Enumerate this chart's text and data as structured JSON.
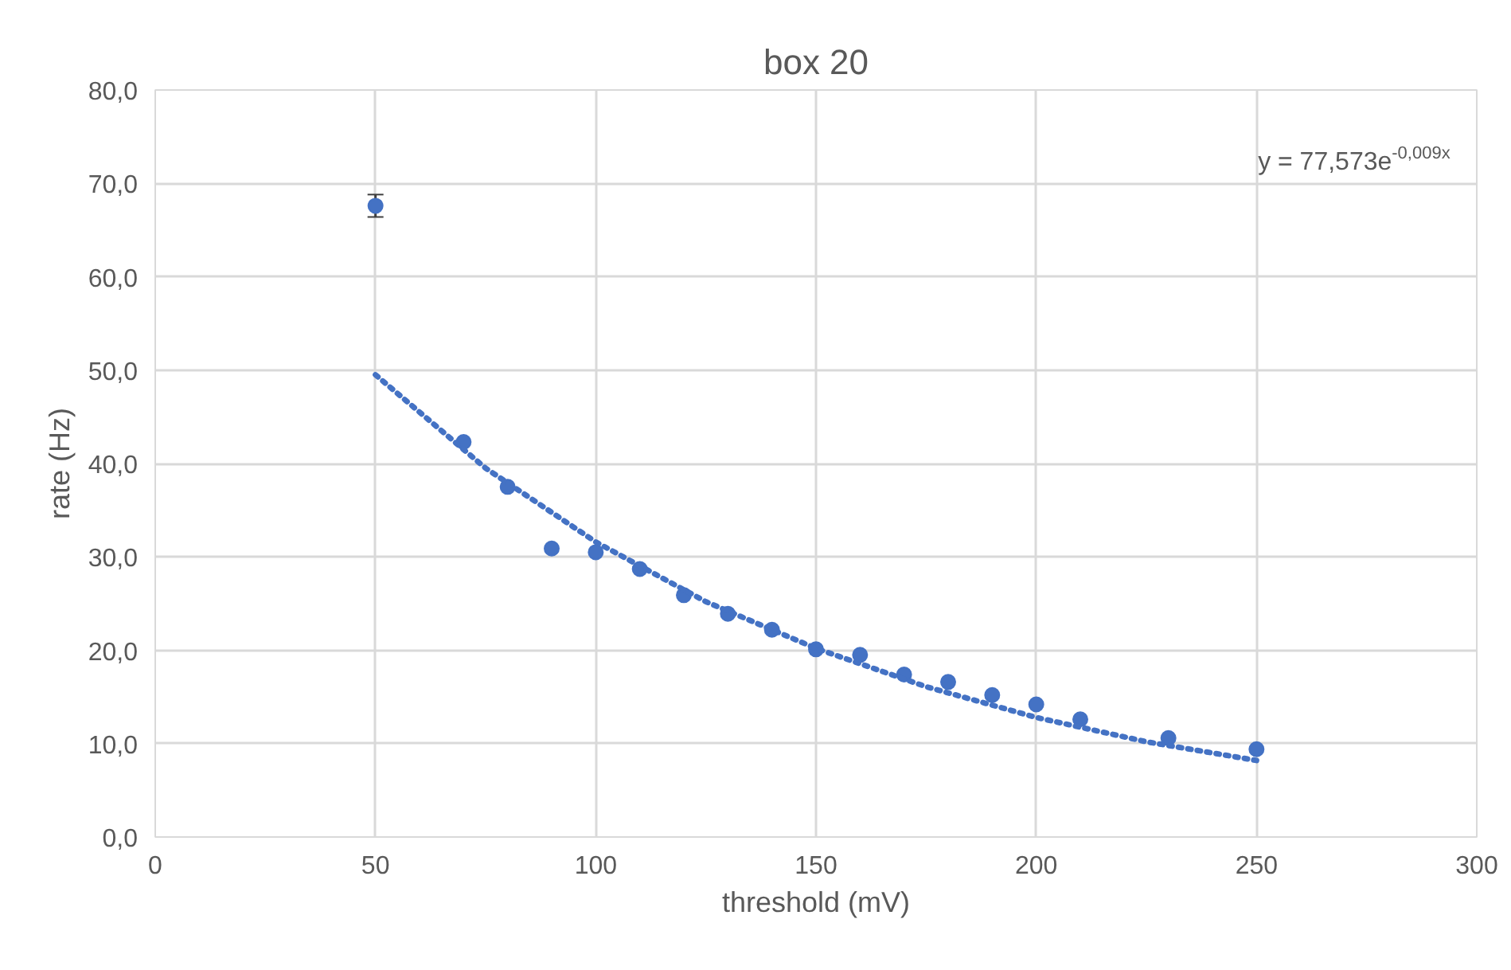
{
  "chart_data": {
    "type": "scatter",
    "title": "box 20",
    "xlabel": "threshold (mV)",
    "ylabel": "rate (Hz)",
    "x": [
      50,
      70,
      80,
      90,
      100,
      110,
      120,
      130,
      140,
      150,
      160,
      170,
      180,
      190,
      200,
      210,
      230,
      250
    ],
    "series": [
      {
        "color": "#4472c4",
        "values": [
          67.6,
          42.3,
          37.5,
          30.9,
          30.5,
          28.7,
          25.9,
          23.9,
          22.2,
          20.1,
          19.5,
          17.4,
          16.6,
          15.2,
          14.2,
          12.6,
          10.6,
          9.4
        ],
        "errors": [
          1.2,
          null,
          null,
          null,
          null,
          null,
          null,
          null,
          null,
          null,
          null,
          null,
          null,
          null,
          null,
          null,
          null,
          null
        ],
        "marker": "circle"
      },
      {
        "type": "line",
        "color": "#4472c4",
        "line_style": "dotted",
        "x": [
          50,
          75,
          100,
          125,
          150,
          175,
          200,
          225,
          250
        ],
        "values": [
          49.5,
          39.5,
          31.6,
          25.2,
          20.2,
          16.1,
          12.8,
          10.2,
          8.2
        ]
      }
    ],
    "xlim": [
      0,
      300
    ],
    "xticks": [
      0,
      50,
      100,
      150,
      200,
      250,
      300
    ],
    "ylim": [
      0,
      80
    ],
    "yticks": [
      {
        "value": 0,
        "label": "0,0"
      },
      {
        "value": 10,
        "label": "10,0"
      },
      {
        "value": 20,
        "label": "20,0"
      },
      {
        "value": 30,
        "label": "30,0"
      },
      {
        "value": 40,
        "label": "40,0"
      },
      {
        "value": 50,
        "label": "50,0"
      },
      {
        "value": 60,
        "label": "60,0"
      },
      {
        "value": 70,
        "label": "70,0"
      },
      {
        "value": 80,
        "label": "80,0"
      }
    ],
    "grid": true,
    "annotations": [
      "y = 77,573e$^{-0,009x}$"
    ]
  }
}
